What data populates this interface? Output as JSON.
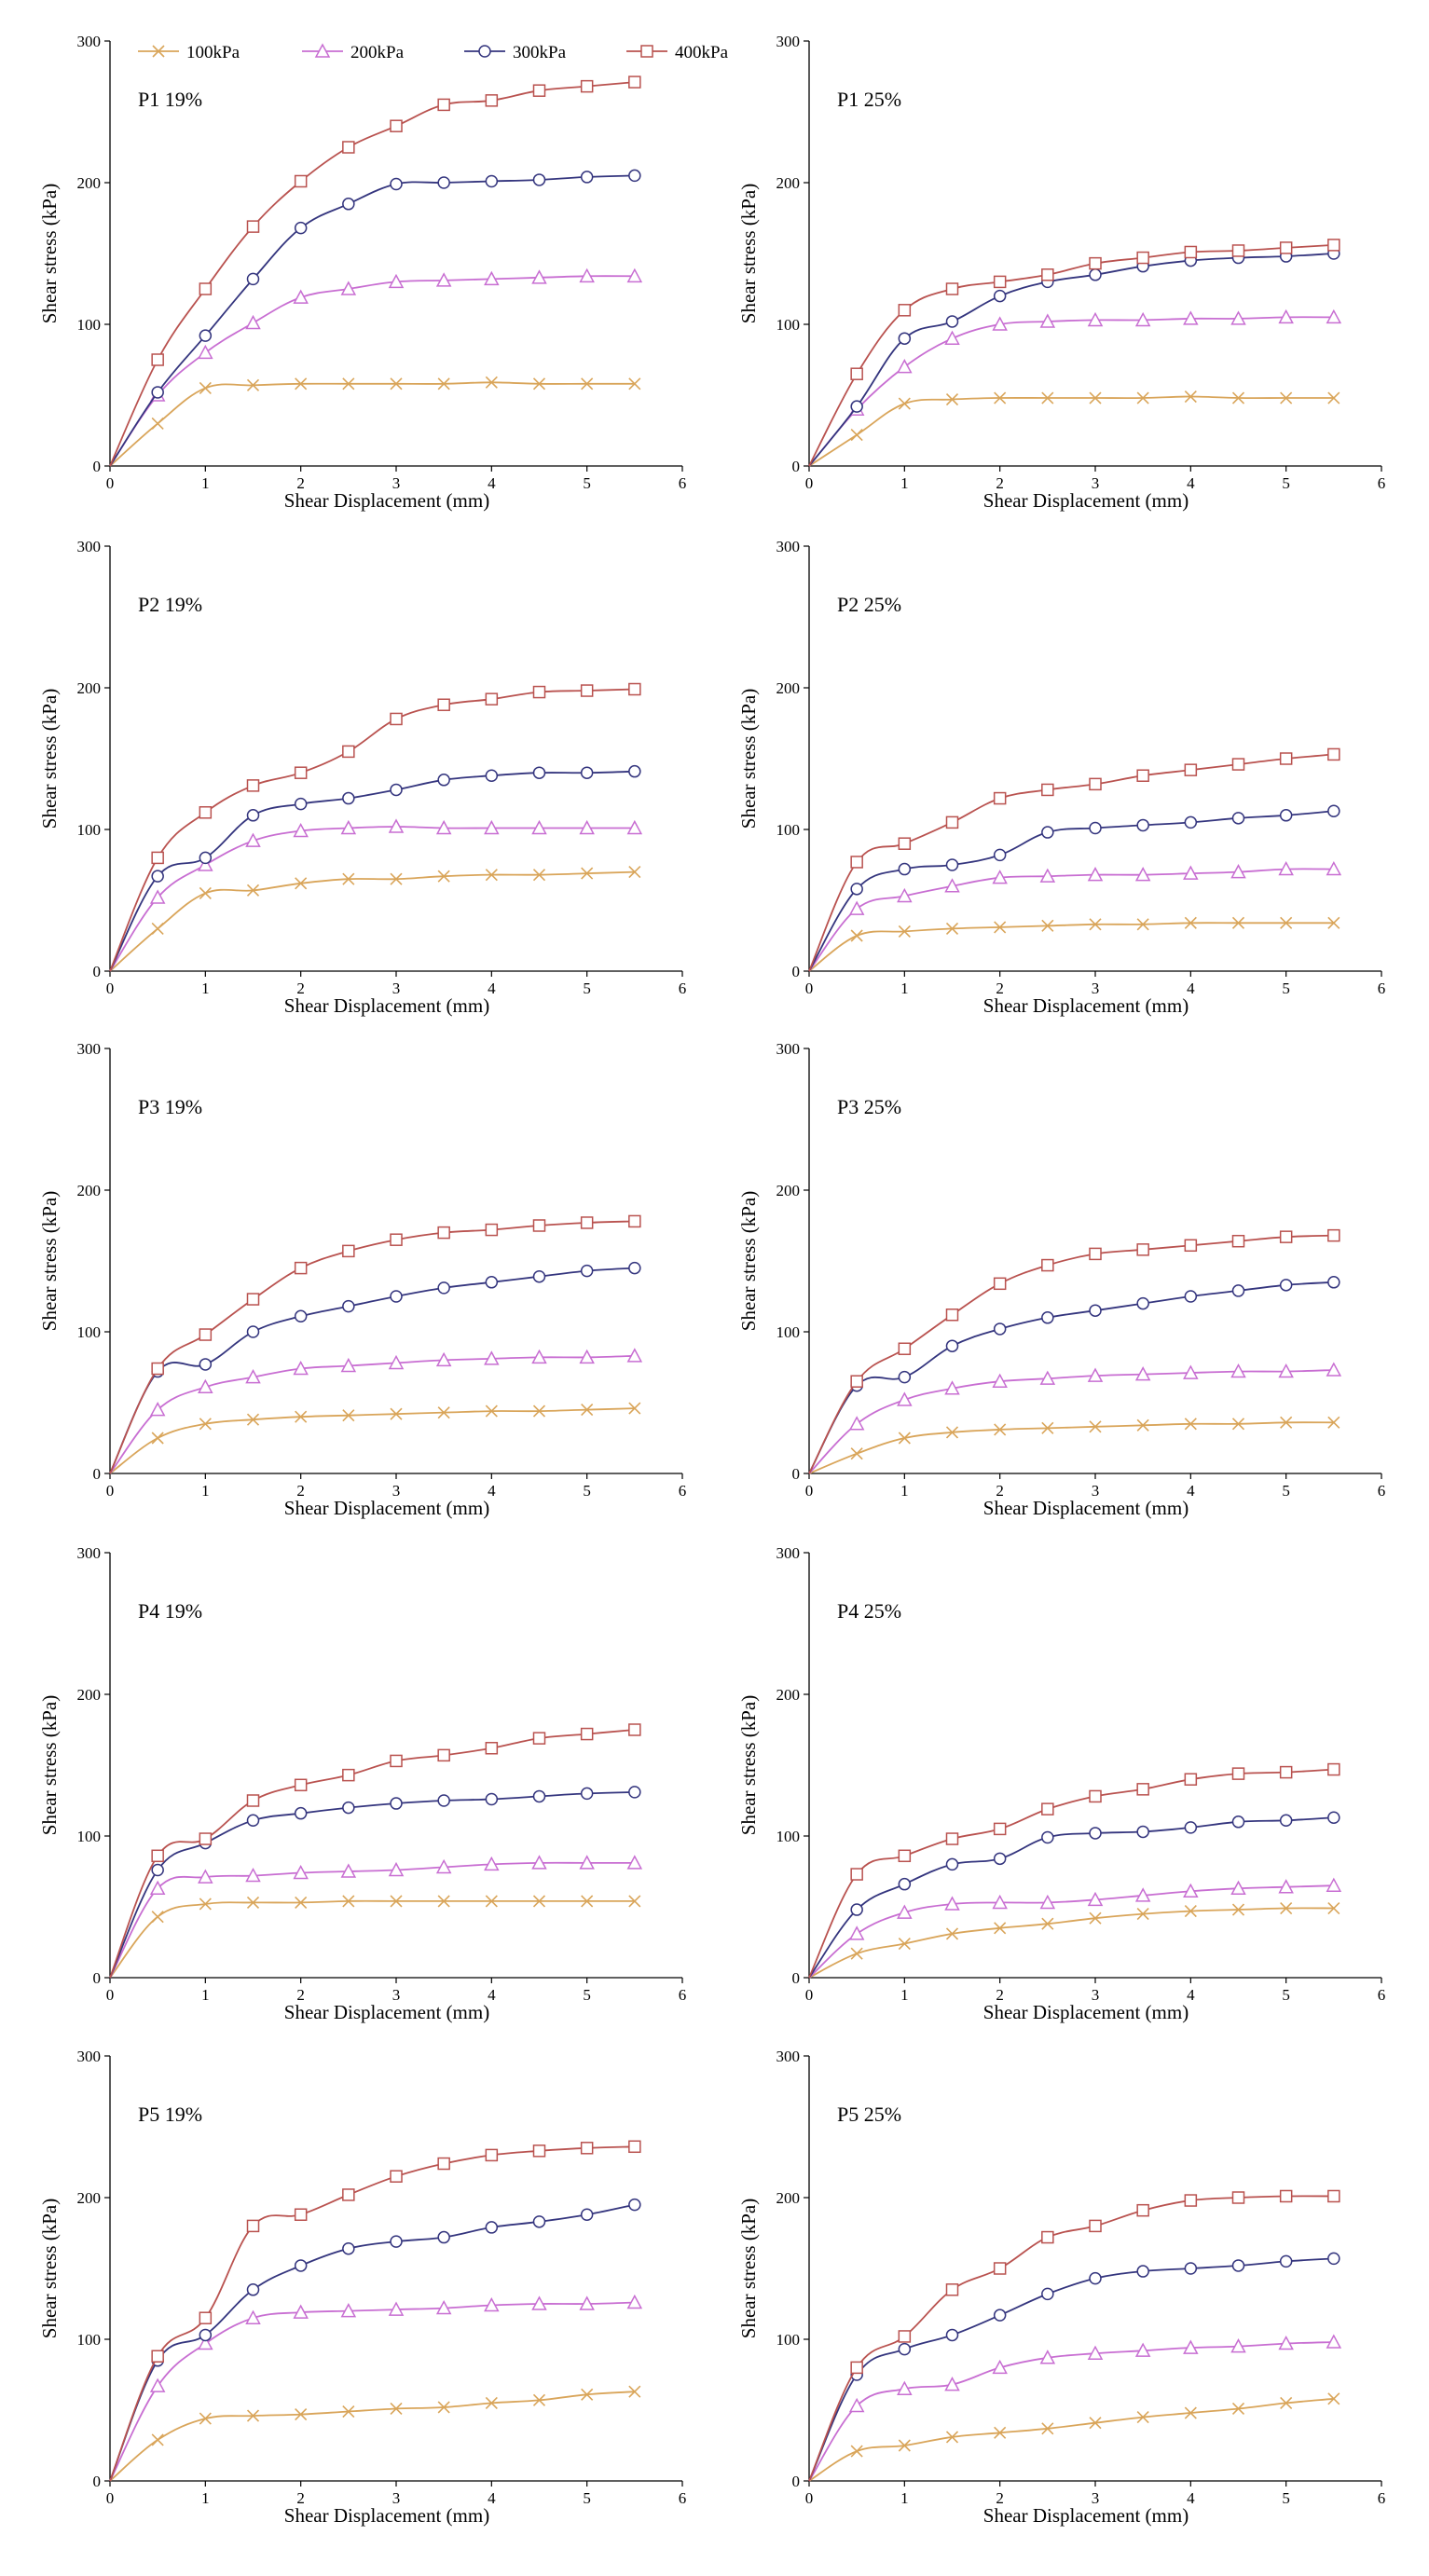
{
  "colors": {
    "100kPa": "#d9a55a",
    "200kPa": "#c86ed2",
    "300kPa": "#34357e",
    "400kPa": "#b9524f"
  },
  "markers": {
    "100kPa": "x-marker",
    "200kPa": "triangle-marker",
    "300kPa": "circle-marker",
    "400kPa": "square-marker"
  },
  "legend": {
    "entries": [
      "100kPa",
      "200kPa",
      "300kPa",
      "400kPa"
    ]
  },
  "chart_data": [
    {
      "type": "line",
      "panel_label": "P1  19%",
      "xlabel": "Shear Displacement (mm)",
      "ylabel": "Shear stress (kPa)",
      "xlim": [
        0,
        6
      ],
      "ylim": [
        0,
        300
      ],
      "xticks": [
        "0",
        "1",
        "2",
        "3",
        "4",
        "5",
        "6"
      ],
      "yticks": [
        "0",
        "100",
        "200",
        "300"
      ],
      "x": [
        0,
        0.5,
        1,
        1.5,
        2,
        2.5,
        3,
        3.5,
        4,
        4.5,
        5,
        5.5
      ],
      "series": [
        {
          "name": "100kPa",
          "values": [
            0,
            30,
            55,
            57,
            58,
            58,
            58,
            58,
            59,
            58,
            58,
            58
          ]
        },
        {
          "name": "200kPa",
          "values": [
            0,
            50,
            80,
            101,
            119,
            125,
            130,
            131,
            132,
            133,
            134,
            134
          ]
        },
        {
          "name": "300kPa",
          "values": [
            0,
            52,
            92,
            132,
            168,
            185,
            199,
            200,
            201,
            202,
            204,
            205
          ]
        },
        {
          "name": "400kPa",
          "values": [
            0,
            75,
            125,
            169,
            201,
            225,
            240,
            255,
            258,
            265,
            268,
            271
          ]
        }
      ]
    },
    {
      "type": "line",
      "panel_label": "P1  25%",
      "xlabel": "Shear Displacement (mm)",
      "ylabel": "Shear stress (kPa)",
      "xlim": [
        0,
        6
      ],
      "ylim": [
        0,
        300
      ],
      "xticks": [
        "0",
        "1",
        "2",
        "3",
        "4",
        "5",
        "6"
      ],
      "yticks": [
        "0",
        "100",
        "200",
        "300"
      ],
      "x": [
        0,
        0.5,
        1,
        1.5,
        2,
        2.5,
        3,
        3.5,
        4,
        4.5,
        5,
        5.5
      ],
      "series": [
        {
          "name": "100kPa",
          "values": [
            0,
            22,
            44,
            47,
            48,
            48,
            48,
            48,
            49,
            48,
            48,
            48
          ]
        },
        {
          "name": "200kPa",
          "values": [
            0,
            40,
            70,
            90,
            100,
            102,
            103,
            103,
            104,
            104,
            105,
            105
          ]
        },
        {
          "name": "300kPa",
          "values": [
            0,
            42,
            90,
            102,
            120,
            130,
            135,
            141,
            145,
            147,
            148,
            150
          ]
        },
        {
          "name": "400kPa",
          "values": [
            0,
            65,
            110,
            125,
            130,
            135,
            143,
            147,
            151,
            152,
            154,
            156
          ]
        }
      ]
    },
    {
      "type": "line",
      "panel_label": "P2  19%",
      "xlabel": "Shear Displacement (mm)",
      "ylabel": "Shear stress (kPa)",
      "xlim": [
        0,
        6
      ],
      "ylim": [
        0,
        300
      ],
      "xticks": [
        "0",
        "1",
        "2",
        "3",
        "4",
        "5",
        "6"
      ],
      "yticks": [
        "0",
        "100",
        "200",
        "300"
      ],
      "x": [
        0,
        0.5,
        1,
        1.5,
        2,
        2.5,
        3,
        3.5,
        4,
        4.5,
        5,
        5.5
      ],
      "series": [
        {
          "name": "100kPa",
          "values": [
            0,
            30,
            55,
            57,
            62,
            65,
            65,
            67,
            68,
            68,
            69,
            70
          ]
        },
        {
          "name": "200kPa",
          "values": [
            0,
            52,
            75,
            92,
            99,
            101,
            102,
            101,
            101,
            101,
            101,
            101
          ]
        },
        {
          "name": "300kPa",
          "values": [
            0,
            67,
            80,
            110,
            118,
            122,
            128,
            135,
            138,
            140,
            140,
            141
          ]
        },
        {
          "name": "400kPa",
          "values": [
            0,
            80,
            112,
            131,
            140,
            155,
            178,
            188,
            192,
            197,
            198,
            199
          ]
        }
      ]
    },
    {
      "type": "line",
      "panel_label": "P2  25%",
      "xlabel": "Shear Displacement (mm)",
      "ylabel": "Shear stress (kPa)",
      "xlim": [
        0,
        6
      ],
      "ylim": [
        0,
        300
      ],
      "xticks": [
        "0",
        "1",
        "2",
        "3",
        "4",
        "5",
        "6"
      ],
      "yticks": [
        "0",
        "100",
        "200",
        "300"
      ],
      "x": [
        0,
        0.5,
        1,
        1.5,
        2,
        2.5,
        3,
        3.5,
        4,
        4.5,
        5,
        5.5
      ],
      "series": [
        {
          "name": "100kPa",
          "values": [
            0,
            25,
            28,
            30,
            31,
            32,
            33,
            33,
            34,
            34,
            34,
            34
          ]
        },
        {
          "name": "200kPa",
          "values": [
            0,
            44,
            53,
            60,
            66,
            67,
            68,
            68,
            69,
            70,
            72,
            72
          ]
        },
        {
          "name": "300kPa",
          "values": [
            0,
            58,
            72,
            75,
            82,
            98,
            101,
            103,
            105,
            108,
            110,
            113
          ]
        },
        {
          "name": "400kPa",
          "values": [
            0,
            77,
            90,
            105,
            122,
            128,
            132,
            138,
            142,
            146,
            150,
            153
          ]
        }
      ]
    },
    {
      "type": "line",
      "panel_label": "P3  19%",
      "xlabel": "Shear Displacement (mm)",
      "ylabel": "Shear stress (kPa)",
      "xlim": [
        0,
        6
      ],
      "ylim": [
        0,
        300
      ],
      "xticks": [
        "0",
        "1",
        "2",
        "3",
        "4",
        "5",
        "6"
      ],
      "yticks": [
        "0",
        "100",
        "200",
        "300"
      ],
      "x": [
        0,
        0.5,
        1,
        1.5,
        2,
        2.5,
        3,
        3.5,
        4,
        4.5,
        5,
        5.5
      ],
      "series": [
        {
          "name": "100kPa",
          "values": [
            0,
            25,
            35,
            38,
            40,
            41,
            42,
            43,
            44,
            44,
            45,
            46
          ]
        },
        {
          "name": "200kPa",
          "values": [
            0,
            45,
            61,
            68,
            74,
            76,
            78,
            80,
            81,
            82,
            82,
            83
          ]
        },
        {
          "name": "300kPa",
          "values": [
            0,
            72,
            77,
            100,
            111,
            118,
            125,
            131,
            135,
            139,
            143,
            145
          ]
        },
        {
          "name": "400kPa",
          "values": [
            0,
            74,
            98,
            123,
            145,
            157,
            165,
            170,
            172,
            175,
            177,
            178
          ]
        }
      ]
    },
    {
      "type": "line",
      "panel_label": "P3  25%",
      "xlabel": "Shear Displacement (mm)",
      "ylabel": "Shear stress (kPa)",
      "xlim": [
        0,
        6
      ],
      "ylim": [
        0,
        300
      ],
      "xticks": [
        "0",
        "1",
        "2",
        "3",
        "4",
        "5",
        "6"
      ],
      "yticks": [
        "0",
        "100",
        "200",
        "300"
      ],
      "x": [
        0,
        0.5,
        1,
        1.5,
        2,
        2.5,
        3,
        3.5,
        4,
        4.5,
        5,
        5.5
      ],
      "series": [
        {
          "name": "100kPa",
          "values": [
            0,
            14,
            25,
            29,
            31,
            32,
            33,
            34,
            35,
            35,
            36,
            36
          ]
        },
        {
          "name": "200kPa",
          "values": [
            0,
            35,
            52,
            60,
            65,
            67,
            69,
            70,
            71,
            72,
            72,
            73
          ]
        },
        {
          "name": "300kPa",
          "values": [
            0,
            62,
            68,
            90,
            102,
            110,
            115,
            120,
            125,
            129,
            133,
            135
          ]
        },
        {
          "name": "400kPa",
          "values": [
            0,
            65,
            88,
            112,
            134,
            147,
            155,
            158,
            161,
            164,
            167,
            168
          ]
        }
      ]
    },
    {
      "type": "line",
      "panel_label": "P4  19%",
      "xlabel": "Shear Displacement (mm)",
      "ylabel": "Shear stress (kPa)",
      "xlim": [
        0,
        6
      ],
      "ylim": [
        0,
        300
      ],
      "xticks": [
        "0",
        "1",
        "2",
        "3",
        "4",
        "5",
        "6"
      ],
      "yticks": [
        "0",
        "100",
        "200",
        "300"
      ],
      "x": [
        0,
        0.5,
        1,
        1.5,
        2,
        2.5,
        3,
        3.5,
        4,
        4.5,
        5,
        5.5
      ],
      "series": [
        {
          "name": "100kPa",
          "values": [
            0,
            43,
            52,
            53,
            53,
            54,
            54,
            54,
            54,
            54,
            54,
            54
          ]
        },
        {
          "name": "200kPa",
          "values": [
            0,
            63,
            71,
            72,
            74,
            75,
            76,
            78,
            80,
            81,
            81,
            81
          ]
        },
        {
          "name": "300kPa",
          "values": [
            0,
            76,
            95,
            111,
            116,
            120,
            123,
            125,
            126,
            128,
            130,
            131
          ]
        },
        {
          "name": "400kPa",
          "values": [
            0,
            86,
            98,
            125,
            136,
            143,
            153,
            157,
            162,
            169,
            172,
            175
          ]
        }
      ]
    },
    {
      "type": "line",
      "panel_label": "P4  25%",
      "xlabel": "Shear Displacement (mm)",
      "ylabel": "Shear stress (kPa)",
      "xlim": [
        0,
        6
      ],
      "ylim": [
        0,
        300
      ],
      "xticks": [
        "0",
        "1",
        "2",
        "3",
        "4",
        "5",
        "6"
      ],
      "yticks": [
        "0",
        "100",
        "200",
        "300"
      ],
      "x": [
        0,
        0.5,
        1,
        1.5,
        2,
        2.5,
        3,
        3.5,
        4,
        4.5,
        5,
        5.5
      ],
      "series": [
        {
          "name": "100kPa",
          "values": [
            0,
            17,
            24,
            31,
            35,
            38,
            42,
            45,
            47,
            48,
            49,
            49
          ]
        },
        {
          "name": "200kPa",
          "values": [
            0,
            31,
            46,
            52,
            53,
            53,
            55,
            58,
            61,
            63,
            64,
            65
          ]
        },
        {
          "name": "300kPa",
          "values": [
            0,
            48,
            66,
            80,
            84,
            99,
            102,
            103,
            106,
            110,
            111,
            113
          ]
        },
        {
          "name": "400kPa",
          "values": [
            0,
            73,
            86,
            98,
            105,
            119,
            128,
            133,
            140,
            144,
            145,
            147
          ]
        }
      ]
    },
    {
      "type": "line",
      "panel_label": "P5  19%",
      "xlabel": "Shear Displacement (mm)",
      "ylabel": "Shear stress (kPa)",
      "xlim": [
        0,
        6
      ],
      "ylim": [
        0,
        300
      ],
      "xticks": [
        "0",
        "1",
        "2",
        "3",
        "4",
        "5",
        "6"
      ],
      "yticks": [
        "0",
        "100",
        "200",
        "300"
      ],
      "x": [
        0,
        0.5,
        1,
        1.5,
        2,
        2.5,
        3,
        3.5,
        4,
        4.5,
        5,
        5.5
      ],
      "series": [
        {
          "name": "100kPa",
          "values": [
            0,
            29,
            44,
            46,
            47,
            49,
            51,
            52,
            55,
            57,
            61,
            63
          ]
        },
        {
          "name": "200kPa",
          "values": [
            0,
            67,
            97,
            115,
            119,
            120,
            121,
            122,
            124,
            125,
            125,
            126
          ]
        },
        {
          "name": "300kPa",
          "values": [
            0,
            85,
            103,
            135,
            152,
            164,
            169,
            172,
            179,
            183,
            188,
            195
          ]
        },
        {
          "name": "400kPa",
          "values": [
            0,
            88,
            115,
            180,
            188,
            202,
            215,
            224,
            230,
            233,
            235,
            236
          ]
        }
      ]
    },
    {
      "type": "line",
      "panel_label": "P5  25%",
      "xlabel": "Shear Displacement (mm)",
      "ylabel": "Shear stress (kPa)",
      "xlim": [
        0,
        6
      ],
      "ylim": [
        0,
        300
      ],
      "xticks": [
        "0",
        "1",
        "2",
        "3",
        "4",
        "5",
        "6"
      ],
      "yticks": [
        "0",
        "100",
        "200",
        "300"
      ],
      "x": [
        0,
        0.5,
        1,
        1.5,
        2,
        2.5,
        3,
        3.5,
        4,
        4.5,
        5,
        5.5
      ],
      "series": [
        {
          "name": "100kPa",
          "values": [
            0,
            21,
            25,
            31,
            34,
            37,
            41,
            45,
            48,
            51,
            55,
            58
          ]
        },
        {
          "name": "200kPa",
          "values": [
            0,
            53,
            65,
            68,
            80,
            87,
            90,
            92,
            94,
            95,
            97,
            98
          ]
        },
        {
          "name": "300kPa",
          "values": [
            0,
            75,
            93,
            103,
            117,
            132,
            143,
            148,
            150,
            152,
            155,
            157
          ]
        },
        {
          "name": "400kPa",
          "values": [
            0,
            80,
            102,
            135,
            150,
            172,
            180,
            191,
            198,
            200,
            201,
            201
          ]
        }
      ]
    }
  ]
}
